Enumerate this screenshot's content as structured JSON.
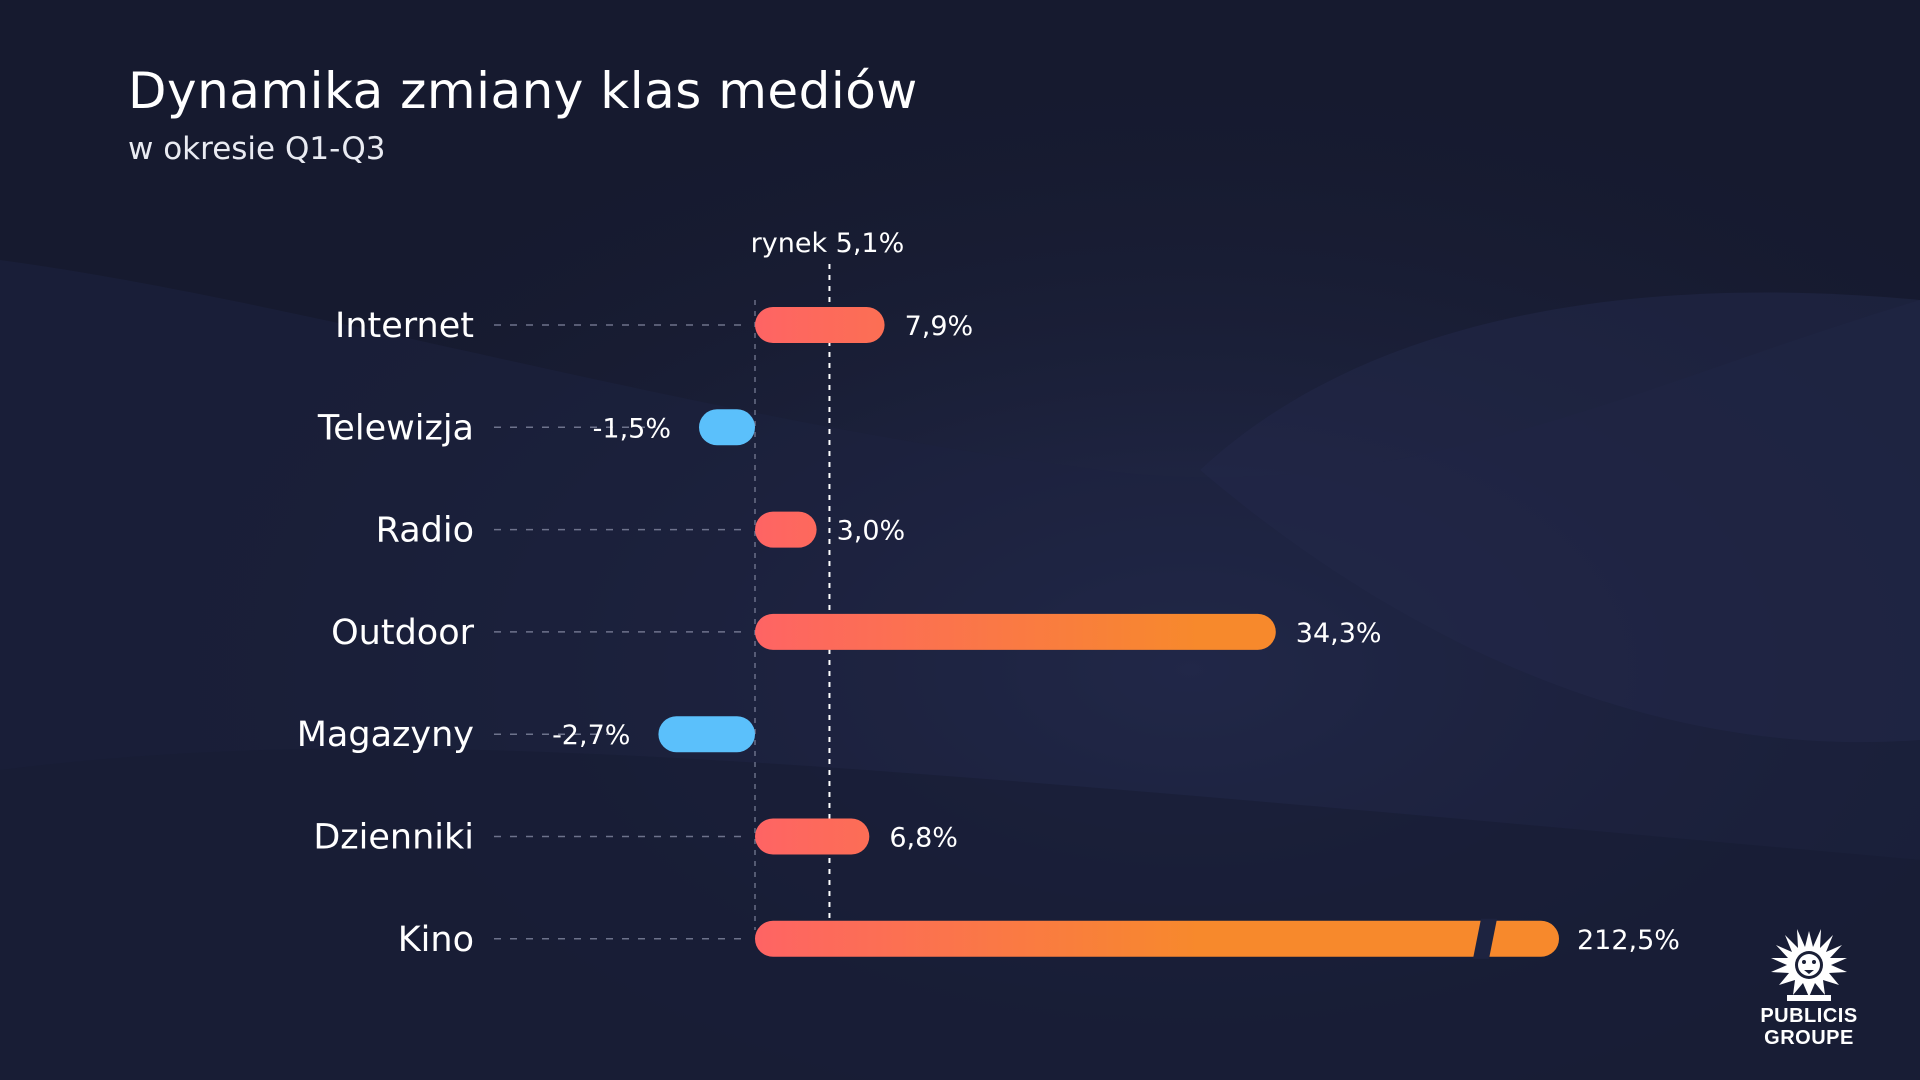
{
  "header": {
    "title": "Dynamika zmiany klas mediów",
    "subtitle": "w okresie Q1-Q3"
  },
  "logo": {
    "name": "publicis-lion-icon",
    "line1": "PUBLICIS",
    "line2": "GROUPE"
  },
  "colors": {
    "background": "#1a1f36",
    "positive_start": "#fe6464",
    "positive_end": "#f7892c",
    "negative": "#5bc0fb",
    "text": "#ffffff",
    "guide": "#8a8fa8"
  },
  "chart_data": {
    "type": "bar",
    "orientation": "horizontal",
    "title": "Dynamika zmiany klas mediów",
    "subtitle": "w okresie Q1-Q3",
    "categories": [
      "Internet",
      "Telewizja",
      "Radio",
      "Outdoor",
      "Magazyny",
      "Dzienniki",
      "Kino"
    ],
    "values": [
      7.9,
      -1.5,
      3.0,
      34.3,
      -2.7,
      6.8,
      212.5
    ],
    "value_labels": [
      "7,9%",
      "-1,5%",
      "3,0%",
      "34,3%",
      "-2,7%",
      "6,8%",
      "212,5%"
    ],
    "reference_line": {
      "label": "rynek 5,1%",
      "value": 5.1
    },
    "axis_break": {
      "category": "Kino",
      "note": "bar truncated with a break mark"
    },
    "grid": false,
    "legend": "none"
  }
}
